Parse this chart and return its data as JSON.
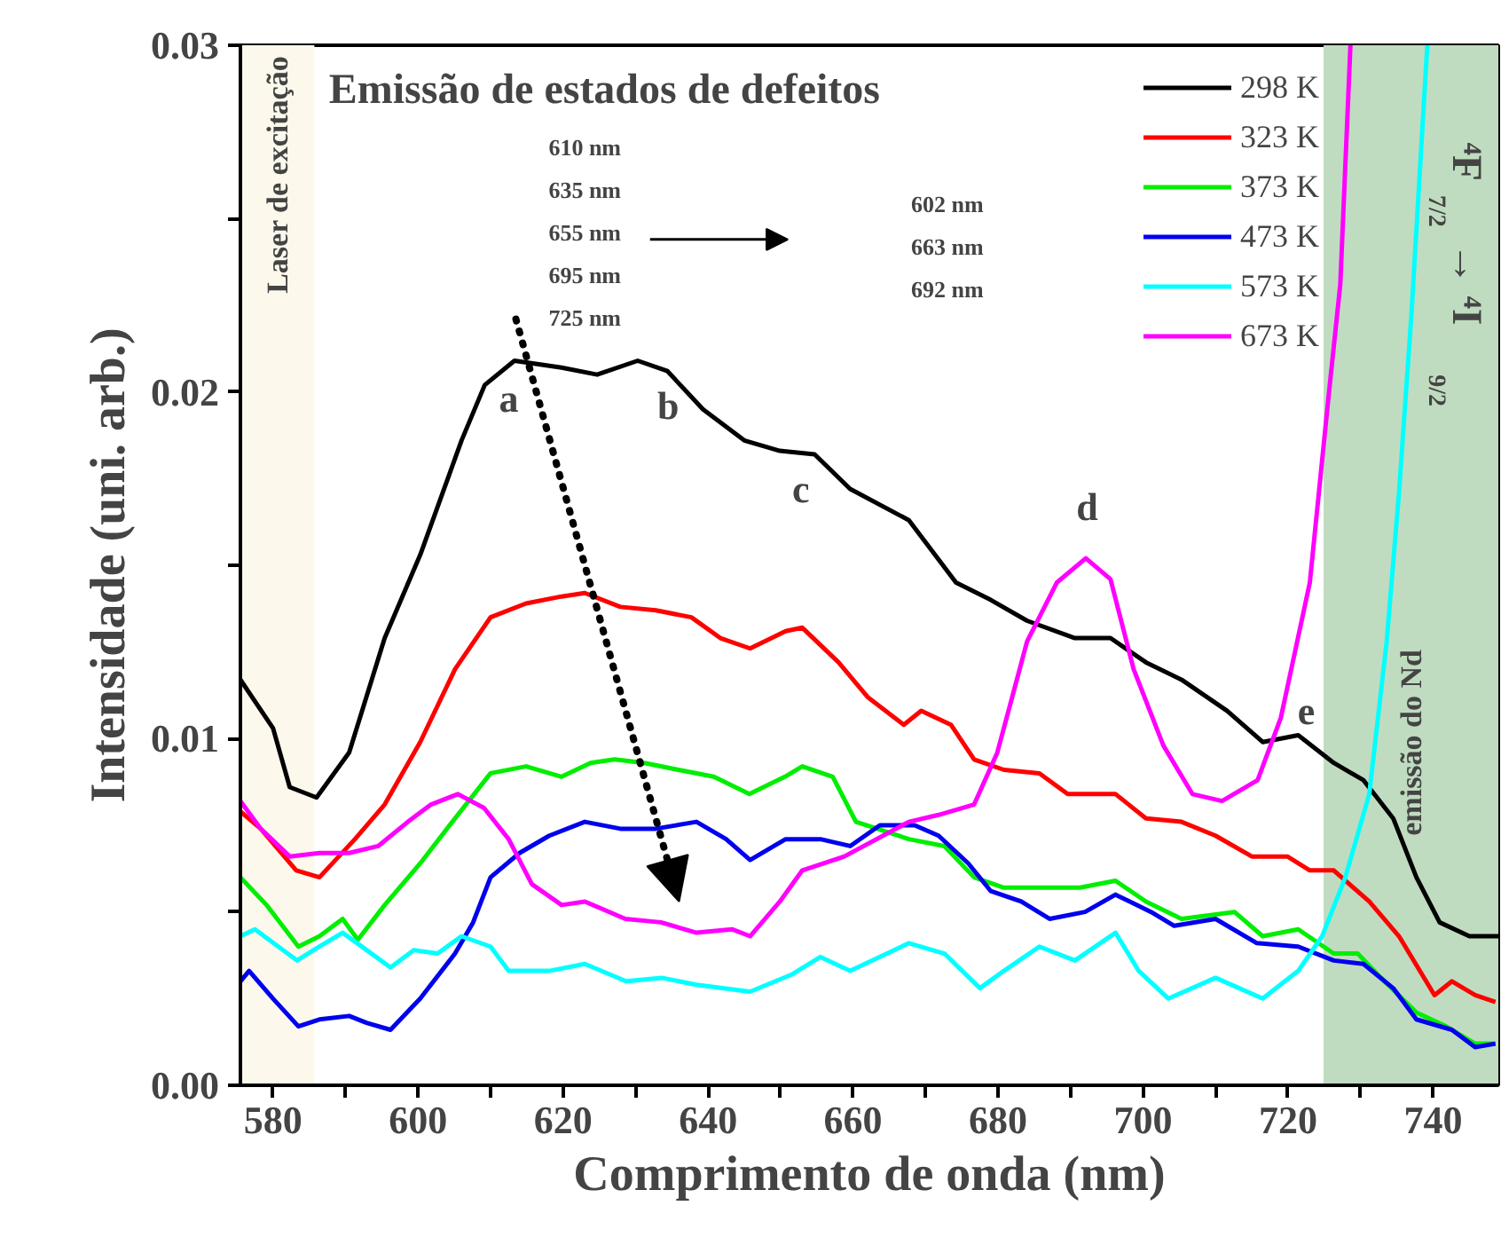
{
  "chart_data": {
    "type": "line",
    "xlabel": "Comprimento de onda (nm)",
    "ylabel": "Intensidade (uni. arb.)",
    "xlim": [
      575.5,
      749
    ],
    "ylim": [
      0,
      0.03
    ],
    "xticks": [
      580,
      {
        "value": 590,
        "label": null
      },
      600,
      {
        "value": 610,
        "label": null
      },
      620,
      {
        "value": 630,
        "label": null
      },
      640,
      {
        "value": 650,
        "label": null
      },
      660,
      {
        "value": 670,
        "label": null
      },
      680,
      {
        "value": 690,
        "label": null
      },
      700,
      {
        "value": 710,
        "label": null
      },
      720,
      {
        "value": 730,
        "label": null
      },
      740
    ],
    "yticks": [
      {
        "value": 0,
        "label": "0.00"
      },
      {
        "value": 0.005,
        "label": null
      },
      {
        "value": 0.01,
        "label": "0.01"
      },
      {
        "value": 0.015,
        "label": null
      },
      {
        "value": 0.02,
        "label": "0.02"
      },
      {
        "value": 0.025,
        "label": null
      },
      {
        "value": 0.03,
        "label": "0.03"
      }
    ],
    "grid": false,
    "legend": "top right",
    "marker": "none",
    "line_style": "solid",
    "bands": [
      {
        "axis": "x",
        "from": 575.5,
        "to": 585.7,
        "label": "Laser de excitação",
        "color": "#fdf8ec"
      },
      {
        "axis": "x",
        "from": 724.9,
        "to": 749,
        "label": "emissão do Nd",
        "color": "#c0dcc0"
      }
    ],
    "annotations": [
      "Emissão de estados de defeitos",
      "610 nm\n635 nm\n655 nm\n695 nm\n725 nm",
      "602 nm\n663 nm\n692 nm",
      "⁴F$_{7/2}$ → ⁴I$_{9/2}$",
      "a",
      "b",
      "c",
      "d",
      "e"
    ],
    "series": [
      {
        "name": "298 K",
        "color": "#000000",
        "x": [
          575.5,
          580,
          582.3,
          586,
          590.5,
          595.4,
          600.3,
          606,
          609.2,
          613.3,
          619.8,
          624.7,
          630.3,
          634.4,
          639.3,
          645,
          649.9,
          654.7,
          659.6,
          667.7,
          674.2,
          679,
          684,
          690.6,
          695.5,
          700.4,
          705.3,
          711.6,
          716.5,
          721.4,
          726.3,
          730.4,
          734.5,
          737.7,
          740.9,
          745,
          749
        ],
        "values": [
          0.0117,
          0.0103,
          0.0086,
          0.0083,
          0.0096,
          0.0129,
          0.0153,
          0.0186,
          0.0202,
          0.0209,
          0.0207,
          0.0205,
          0.0209,
          0.0206,
          0.0195,
          0.0186,
          0.0183,
          0.0182,
          0.0172,
          0.0163,
          0.0145,
          0.014,
          0.0134,
          0.0129,
          0.0129,
          0.0122,
          0.0117,
          0.0108,
          0.0099,
          0.0101,
          0.0093,
          0.0088,
          0.0077,
          0.006,
          0.0047,
          0.0043,
          0.0043
        ]
      },
      {
        "name": "323 K",
        "color": "#ff0000",
        "x": [
          575.5,
          578.3,
          583.2,
          586.4,
          591.3,
          595.4,
          600.3,
          605.1,
          610,
          614.9,
          619.8,
          623,
          627.9,
          632.8,
          637.7,
          641.7,
          645.8,
          650.7,
          653,
          658,
          662,
          667,
          669.4,
          673.5,
          676.7,
          680.8,
          685.7,
          689.6,
          696.2,
          700.4,
          705.3,
          710,
          715,
          719.9,
          723,
          726.3,
          731.2,
          735.3,
          740.2,
          742.6,
          745.8,
          748.6
        ],
        "values": [
          0.0079,
          0.0074,
          0.0062,
          0.006,
          0.0071,
          0.0081,
          0.0099,
          0.012,
          0.0135,
          0.0139,
          0.0141,
          0.0142,
          0.0138,
          0.0137,
          0.0135,
          0.0129,
          0.0126,
          0.0131,
          0.0132,
          0.0122,
          0.0112,
          0.0104,
          0.0108,
          0.0104,
          0.0094,
          0.0091,
          0.009,
          0.0084,
          0.0084,
          0.0077,
          0.0076,
          0.0072,
          0.0066,
          0.0066,
          0.0062,
          0.0062,
          0.0053,
          0.0043,
          0.0026,
          0.003,
          0.0026,
          0.0024
        ]
      },
      {
        "name": "373 K",
        "color": "#00ee00",
        "x": [
          575.5,
          579.1,
          583.5,
          586.4,
          589.6,
          591.7,
          595.4,
          600.3,
          605.1,
          610,
          614.9,
          619.8,
          623.8,
          627.1,
          631.2,
          635.9,
          640.8,
          645.7,
          650.6,
          653,
          657.2,
          660.4,
          667.7,
          672.6,
          676.7,
          680.8,
          686.5,
          691.3,
          696.2,
          700.4,
          705.3,
          712.6,
          716.5,
          721.4,
          726.3,
          729.6,
          732.8,
          737.7,
          741.8,
          745.8,
          748.6
        ],
        "values": [
          0.006,
          0.0052,
          0.004,
          0.0043,
          0.0048,
          0.0042,
          0.0052,
          0.0064,
          0.0077,
          0.009,
          0.0092,
          0.0089,
          0.0093,
          0.0094,
          0.0093,
          0.0091,
          0.0089,
          0.0084,
          0.0089,
          0.0092,
          0.0089,
          0.0076,
          0.0071,
          0.0069,
          0.006,
          0.0057,
          0.0057,
          0.0057,
          0.0059,
          0.0053,
          0.0048,
          0.005,
          0.0043,
          0.0045,
          0.0038,
          0.0038,
          0.0031,
          0.0021,
          0.0017,
          0.0012,
          0.0012
        ]
      },
      {
        "name": "473 K",
        "color": "#0000ee",
        "x": [
          575.5,
          576.7,
          580,
          583.5,
          586.4,
          590.5,
          592.9,
          596.2,
          600.3,
          605.1,
          607.6,
          610,
          614,
          618.1,
          623,
          627.9,
          632.8,
          638.4,
          642.5,
          645.8,
          650.7,
          655.5,
          659.6,
          663.7,
          668.5,
          671.8,
          675.9,
          679,
          683.2,
          687.1,
          692,
          696.2,
          701.1,
          704.3,
          710,
          715.7,
          721.4,
          726.3,
          730.4,
          734.5,
          737.7,
          742.6,
          745.8,
          748.6
        ],
        "values": [
          0.003,
          0.0033,
          0.0025,
          0.0017,
          0.0019,
          0.002,
          0.0018,
          0.0016,
          0.0025,
          0.0038,
          0.0047,
          0.006,
          0.0067,
          0.0072,
          0.0076,
          0.0074,
          0.0074,
          0.0076,
          0.0071,
          0.0065,
          0.0071,
          0.0071,
          0.0069,
          0.0075,
          0.0075,
          0.0072,
          0.0064,
          0.0056,
          0.0053,
          0.0048,
          0.005,
          0.0055,
          0.005,
          0.0046,
          0.0048,
          0.0041,
          0.004,
          0.0036,
          0.0035,
          0.0028,
          0.0019,
          0.0016,
          0.0011,
          0.0012
        ]
      },
      {
        "name": "573 K",
        "color": "#00ffff",
        "x": [
          575.5,
          577.5,
          583.3,
          586.4,
          589.6,
          592.9,
          596.2,
          599.4,
          602.7,
          606,
          610,
          612.5,
          618.1,
          623,
          628.7,
          633.6,
          638.4,
          645.8,
          651.6,
          655.5,
          659.6,
          667.7,
          672.6,
          677.5,
          680.8,
          685.7,
          690.6,
          696.2,
          699.4,
          703.5,
          710,
          716.5,
          721.4,
          724.7,
          727.9,
          731.2,
          733.6,
          735.3,
          737,
          739.2
        ],
        "values": [
          0.0043,
          0.0045,
          0.0036,
          0.004,
          0.0044,
          0.0039,
          0.0034,
          0.0039,
          0.0038,
          0.0043,
          0.004,
          0.0033,
          0.0033,
          0.0035,
          0.003,
          0.0031,
          0.0029,
          0.0027,
          0.0032,
          0.0037,
          0.0033,
          0.0041,
          0.0038,
          0.0028,
          0.0033,
          0.004,
          0.0036,
          0.0044,
          0.0033,
          0.0025,
          0.0031,
          0.0025,
          0.0033,
          0.0043,
          0.006,
          0.0084,
          0.0128,
          0.0171,
          0.0222,
          0.03
        ]
      },
      {
        "name": "673 K",
        "color": "#ff00ff",
        "x": [
          575.5,
          578.3,
          582.3,
          586.4,
          590.5,
          594.5,
          598.6,
          601.8,
          605.5,
          609.1,
          612.5,
          615.7,
          619.8,
          623,
          628.6,
          633.5,
          638.4,
          643.3,
          645.8,
          649.9,
          653,
          658.8,
          667.7,
          671.8,
          676.7,
          679.9,
          684,
          688.1,
          692.1,
          695.5,
          698.7,
          702.8,
          706.8,
          710.9,
          715.8,
          719,
          723,
          725.5,
          727.2,
          728.6
        ],
        "values": [
          0.0082,
          0.0074,
          0.0066,
          0.0067,
          0.0067,
          0.0069,
          0.0076,
          0.0081,
          0.0084,
          0.008,
          0.0071,
          0.0058,
          0.0052,
          0.0053,
          0.0048,
          0.0047,
          0.0044,
          0.0045,
          0.0043,
          0.0053,
          0.0062,
          0.0066,
          0.0076,
          0.0078,
          0.0081,
          0.0096,
          0.0128,
          0.0145,
          0.0152,
          0.0146,
          0.012,
          0.0098,
          0.0084,
          0.0082,
          0.0088,
          0.0106,
          0.0145,
          0.0197,
          0.0231,
          0.03
        ]
      }
    ]
  }
}
